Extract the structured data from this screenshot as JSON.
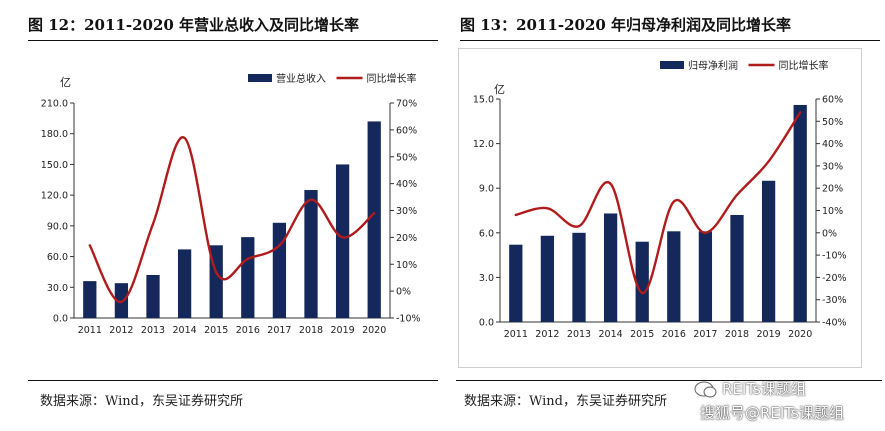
{
  "left": {
    "title": "图 12：2011-2020 年营业总收入及同比增长率",
    "source": "数据来源：Wind，东吴证券研究所",
    "chart_data": {
      "type": "bar",
      "categories": [
        "2011",
        "2012",
        "2013",
        "2014",
        "2015",
        "2016",
        "2017",
        "2018",
        "2019",
        "2020"
      ],
      "series": [
        {
          "name": "营业总收入",
          "type": "bar",
          "axis": "left",
          "color": "#14285c",
          "values": [
            36,
            34,
            42,
            67,
            71,
            79,
            93,
            125,
            150,
            192
          ]
        },
        {
          "name": "同比增长率",
          "type": "line",
          "axis": "right",
          "color": "#b01c1c",
          "values": [
            17,
            -4,
            25,
            57,
            7,
            12,
            17,
            34,
            20,
            29
          ]
        }
      ],
      "ylabel": "亿",
      "ylim": [
        0,
        210
      ],
      "yticks": [
        "0.0",
        "30.0",
        "60.0",
        "90.0",
        "120.0",
        "150.0",
        "180.0",
        "210.0"
      ],
      "y2lim": [
        -10,
        70
      ],
      "y2ticks": [
        "-10%",
        "0%",
        "10%",
        "20%",
        "30%",
        "40%",
        "50%",
        "60%",
        "70%"
      ],
      "legend": "top-right",
      "grid": false
    }
  },
  "right": {
    "title": "图 13：2011-2020 年归母净利润及同比增长率",
    "source": "数据来源：Wind，东吴证券研究所",
    "chart_data": {
      "type": "bar",
      "categories": [
        "2011",
        "2012",
        "2013",
        "2014",
        "2015",
        "2016",
        "2017",
        "2018",
        "2019",
        "2020"
      ],
      "series": [
        {
          "name": "归母净利润",
          "type": "bar",
          "axis": "left",
          "color": "#14285c",
          "values": [
            5.2,
            5.8,
            6.0,
            7.3,
            5.4,
            6.1,
            6.1,
            7.2,
            9.5,
            14.6
          ]
        },
        {
          "name": "同比增长率",
          "type": "line",
          "axis": "right",
          "color": "#b01c1c",
          "values": [
            8,
            11,
            3,
            22,
            -27,
            14,
            0,
            17,
            32,
            54
          ]
        }
      ],
      "ylabel": "亿",
      "ylim": [
        0,
        15
      ],
      "yticks": [
        "0.0",
        "3.0",
        "6.0",
        "9.0",
        "12.0",
        "15.0"
      ],
      "y2lim": [
        -40,
        60
      ],
      "y2ticks": [
        "-40%",
        "-30%",
        "-20%",
        "-10%",
        "0%",
        "10%",
        "20%",
        "30%",
        "40%",
        "50%",
        "60%"
      ],
      "legend": "top-right",
      "grid": false
    }
  },
  "watermark": {
    "line1": "REITs课题组",
    "line2": "搜狐号@REITs课题组"
  }
}
